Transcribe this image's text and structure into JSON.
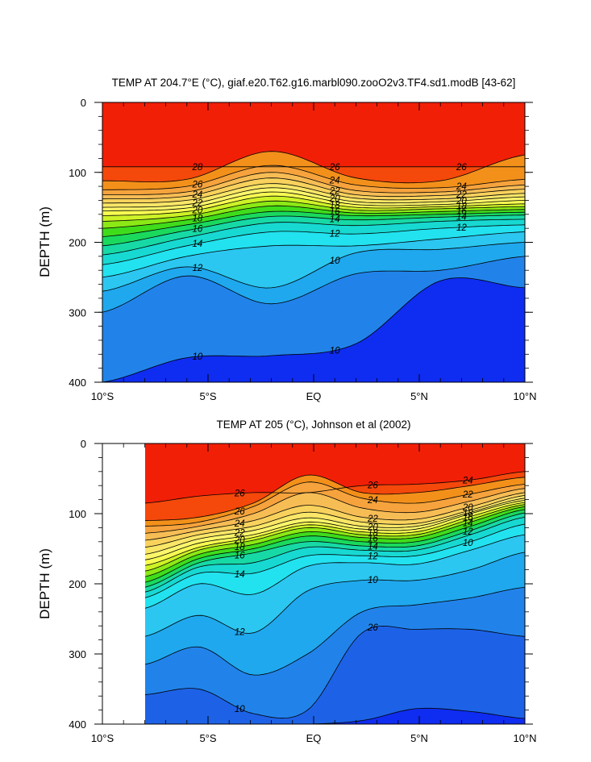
{
  "chart_data": [
    {
      "type": "filled-contour",
      "title": "TEMP AT 204.7°E (°C), giaf.e20.T62.g16.marbl090.zooO2v3.TF4.sd1.modB [43-62]",
      "ylabel": "DEPTH (m)",
      "xlabel": "",
      "xlim": [
        -10,
        10
      ],
      "ylim": [
        400,
        0
      ],
      "x_ticks": [
        "10°S",
        "5°S",
        "EQ",
        "5°N",
        "10°N"
      ],
      "y_ticks": [
        "0",
        "100",
        "200",
        "300",
        "400"
      ],
      "data_extent_x": [
        -10,
        10
      ],
      "contour_interval": 1,
      "levels": [
        {
          "temp": 28,
          "depth": [
            92,
            92,
            92,
            92,
            92,
            92
          ]
        },
        {
          "temp": 27,
          "depth": [
            112,
            110,
            70,
            108,
            112,
            75
          ]
        },
        {
          "temp": 26,
          "depth": [
            125,
            120,
            90,
            118,
            122,
            110
          ]
        },
        {
          "temp": 25,
          "depth": [
            132,
            128,
            100,
            126,
            128,
            118
          ]
        },
        {
          "temp": 24,
          "depth": [
            138,
            134,
            108,
            132,
            133,
            124
          ]
        },
        {
          "temp": 23,
          "depth": [
            144,
            140,
            116,
            137,
            138,
            130
          ]
        },
        {
          "temp": 22,
          "depth": [
            150,
            146,
            122,
            142,
            142,
            135
          ]
        },
        {
          "temp": 21,
          "depth": [
            155,
            151,
            128,
            146,
            146,
            140
          ]
        },
        {
          "temp": 20,
          "depth": [
            162,
            156,
            134,
            150,
            149,
            145
          ]
        },
        {
          "temp": 19,
          "depth": [
            170,
            162,
            141,
            154,
            152,
            149
          ]
        },
        {
          "temp": 18,
          "depth": [
            180,
            168,
            148,
            158,
            156,
            153
          ]
        },
        {
          "temp": 17,
          "depth": [
            192,
            175,
            156,
            162,
            160,
            157
          ]
        },
        {
          "temp": 16,
          "depth": [
            205,
            183,
            163,
            168,
            164,
            161
          ]
        },
        {
          "temp": 15,
          "depth": [
            218,
            193,
            172,
            176,
            170,
            167
          ]
        },
        {
          "temp": 14,
          "depth": [
            232,
            205,
            185,
            188,
            180,
            175
          ]
        },
        {
          "temp": 13,
          "depth": [
            250,
            220,
            205,
            205,
            195,
            185
          ]
        },
        {
          "temp": 12,
          "depth": [
            270,
            235,
            265,
            215,
            210,
            200
          ]
        },
        {
          "temp": 11,
          "depth": [
            300,
            248,
            288,
            245,
            240,
            220
          ]
        },
        {
          "temp": 10,
          "depth": [
            400,
            365,
            362,
            345,
            255,
            265
          ]
        }
      ],
      "contour_labels": [
        "28",
        "26",
        "24",
        "22",
        "20",
        "18",
        "16",
        "14",
        "12",
        "10",
        "26",
        "24",
        "22",
        "20",
        "18",
        "16",
        "14",
        "12",
        "10",
        "10",
        "26",
        "24",
        "22",
        "20",
        "18",
        "16",
        "14",
        "12"
      ]
    },
    {
      "type": "filled-contour",
      "title": "TEMP AT 205 (°C), Johnson et al (2002)",
      "ylabel": "DEPTH (m)",
      "xlabel": "",
      "xlim": [
        -10,
        10
      ],
      "ylim": [
        400,
        0
      ],
      "x_ticks": [
        "10°S",
        "5°S",
        "EQ",
        "5°N",
        "10°N"
      ],
      "y_ticks": [
        "0",
        "100",
        "200",
        "300",
        "400"
      ],
      "data_extent_x": [
        -8,
        10
      ],
      "contour_interval": 1,
      "levels": [
        {
          "temp": 28,
          "depth": [
            85,
            75,
            70,
            70,
            60,
            58,
            52,
            40
          ]
        },
        {
          "temp": 27,
          "depth": [
            110,
            105,
            85,
            45,
            70,
            70,
            60,
            48
          ]
        },
        {
          "temp": 26,
          "depth": [
            118,
            112,
            90,
            55,
            78,
            85,
            72,
            58
          ]
        },
        {
          "temp": 25,
          "depth": [
            128,
            118,
            100,
            70,
            92,
            98,
            82,
            64
          ]
        },
        {
          "temp": 24,
          "depth": [
            138,
            124,
            110,
            88,
            105,
            108,
            90,
            70
          ]
        },
        {
          "temp": 23,
          "depth": [
            148,
            130,
            118,
            98,
            112,
            114,
            95,
            74
          ]
        },
        {
          "temp": 22,
          "depth": [
            158,
            136,
            124,
            106,
            118,
            118,
            98,
            78
          ]
        },
        {
          "temp": 21,
          "depth": [
            166,
            142,
            130,
            112,
            122,
            122,
            100,
            81
          ]
        },
        {
          "temp": 20,
          "depth": [
            174,
            148,
            134,
            116,
            126,
            126,
            104,
            84
          ]
        },
        {
          "temp": 19,
          "depth": [
            182,
            152,
            138,
            120,
            130,
            130,
            108,
            87
          ]
        },
        {
          "temp": 18,
          "depth": [
            190,
            158,
            144,
            126,
            134,
            134,
            112,
            90
          ]
        },
        {
          "temp": 17,
          "depth": [
            198,
            164,
            150,
            132,
            140,
            140,
            118,
            94
          ]
        },
        {
          "temp": 16,
          "depth": [
            205,
            170,
            156,
            140,
            146,
            146,
            124,
            99
          ]
        },
        {
          "temp": 15,
          "depth": [
            212,
            176,
            170,
            148,
            152,
            152,
            130,
            105
          ]
        },
        {
          "temp": 14,
          "depth": [
            220,
            185,
            185,
            160,
            160,
            160,
            140,
            115
          ]
        },
        {
          "temp": 13,
          "depth": [
            235,
            200,
            215,
            175,
            170,
            172,
            152,
            130
          ]
        },
        {
          "temp": 12,
          "depth": [
            275,
            245,
            270,
            210,
            195,
            195,
            180,
            155
          ]
        },
        {
          "temp": 11,
          "depth": [
            315,
            290,
            330,
            300,
            240,
            230,
            220,
            205
          ]
        },
        {
          "temp": 10,
          "depth": [
            358,
            350,
            385,
            380,
            270,
            265,
            265,
            275
          ]
        },
        {
          "temp": 9,
          "depth": [
            400,
            400,
            400,
            400,
            395,
            378,
            382,
            392
          ]
        }
      ],
      "contour_labels": [
        "26",
        "26",
        "24",
        "22",
        "20",
        "18",
        "16",
        "14",
        "12",
        "10",
        "26",
        "24",
        "22",
        "20",
        "18",
        "16",
        "14",
        "12",
        "10",
        "26",
        "24",
        "22",
        "20",
        "18",
        "16",
        "14",
        "12",
        "10"
      ]
    }
  ],
  "colors": {
    "above_28": "#f21f07",
    "27": "#f5480b",
    "26": "#f3901a",
    "25": "#f6a33d",
    "24": "#f7bd55",
    "23": "#f8d25d",
    "22": "#fae667",
    "21": "#fdf66b",
    "20": "#f7fb51",
    "19": "#cdf226",
    "18": "#8ce915",
    "17": "#3fdc1b",
    "16": "#1ad95d",
    "15": "#17d9a5",
    "14": "#17d9d2",
    "13": "#22e2ef",
    "12": "#2bc7f0",
    "11": "#1fa8ee",
    "10": "#2183ea",
    "9": "#1d62e6",
    "below": "#0f2cf1"
  }
}
